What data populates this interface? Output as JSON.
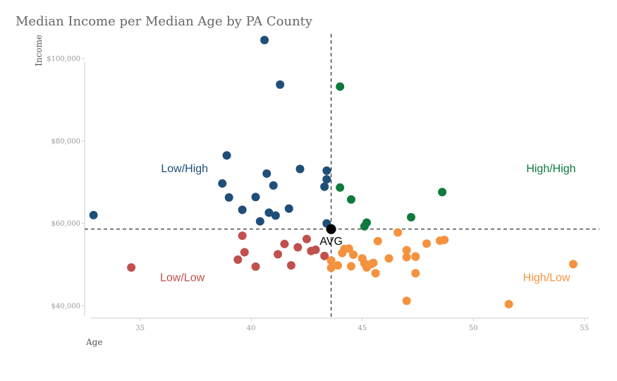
{
  "chart_data": {
    "type": "scatter",
    "title": "Median Income per Median Age by PA County",
    "xlabel": "Age",
    "ylabel": "Income",
    "xlim": [
      32.5,
      55.2
    ],
    "ylim": [
      37500,
      106000
    ],
    "x_ticks": [
      35,
      40,
      45,
      50,
      55
    ],
    "x_tick_labels": [
      "35",
      "40",
      "45",
      "50",
      "55"
    ],
    "y_ticks": [
      40000,
      60000,
      80000,
      100000
    ],
    "y_tick_labels": [
      "$40,000",
      "$60,000",
      "$80,000",
      "$100,000"
    ],
    "grid": false,
    "reference_lines": {
      "x": 43.6,
      "y": 58600,
      "style": "dashed"
    },
    "avg_point": {
      "x": 43.6,
      "y": 58600,
      "label": "AVG",
      "color": "#000000"
    },
    "quadrant_labels": [
      {
        "text": "Low/High",
        "x": 37.0,
        "y": 73500,
        "color": "#1f4e79"
      },
      {
        "text": "High/High",
        "x": 53.5,
        "y": 73500,
        "color": "#0e7a3e"
      },
      {
        "text": "Low/Low",
        "x": 36.9,
        "y": 47000,
        "color": "#c0504d"
      },
      {
        "text": "High/Low",
        "x": 53.3,
        "y": 47000,
        "color": "#f5923e"
      }
    ],
    "series": [
      {
        "name": "Low/High",
        "color": "#1f4e79",
        "points": [
          [
            32.9,
            62000
          ],
          [
            38.9,
            76500
          ],
          [
            38.7,
            69700
          ],
          [
            39.0,
            66300
          ],
          [
            39.6,
            63300
          ],
          [
            40.2,
            66400
          ],
          [
            40.4,
            60500
          ],
          [
            40.6,
            104500
          ],
          [
            40.7,
            72100
          ],
          [
            40.8,
            62600
          ],
          [
            41.0,
            69200
          ],
          [
            41.1,
            61900
          ],
          [
            41.3,
            93700
          ],
          [
            41.7,
            63600
          ],
          [
            42.2,
            73200
          ],
          [
            43.4,
            72800
          ],
          [
            43.4,
            70700
          ],
          [
            43.3,
            68900
          ],
          [
            43.4,
            60000
          ]
        ]
      },
      {
        "name": "High/High",
        "color": "#0e7a3e",
        "points": [
          [
            44.0,
            93200
          ],
          [
            44.0,
            68700
          ],
          [
            44.5,
            65800
          ],
          [
            45.1,
            59300
          ],
          [
            45.2,
            60200
          ],
          [
            47.2,
            61500
          ],
          [
            48.6,
            67600
          ]
        ]
      },
      {
        "name": "Low/Low",
        "color": "#c0504d",
        "points": [
          [
            34.6,
            49300
          ],
          [
            39.4,
            51200
          ],
          [
            39.6,
            57000
          ],
          [
            39.7,
            53000
          ],
          [
            40.2,
            49500
          ],
          [
            41.2,
            52500
          ],
          [
            41.5,
            55000
          ],
          [
            41.8,
            49800
          ],
          [
            42.1,
            54200
          ],
          [
            42.5,
            56200
          ],
          [
            42.7,
            53300
          ],
          [
            42.9,
            53600
          ],
          [
            43.3,
            52100
          ]
        ]
      },
      {
        "name": "High/Low",
        "color": "#f5923e",
        "points": [
          [
            43.6,
            49200
          ],
          [
            43.6,
            51000
          ],
          [
            43.9,
            49800
          ],
          [
            44.1,
            52800
          ],
          [
            44.2,
            53800
          ],
          [
            44.4,
            53900
          ],
          [
            44.5,
            49600
          ],
          [
            44.6,
            52400
          ],
          [
            45.0,
            51500
          ],
          [
            45.1,
            50300
          ],
          [
            45.2,
            49300
          ],
          [
            45.4,
            50100
          ],
          [
            45.5,
            50400
          ],
          [
            45.6,
            47900
          ],
          [
            45.7,
            55700
          ],
          [
            46.2,
            51500
          ],
          [
            46.6,
            57800
          ],
          [
            47.0,
            53500
          ],
          [
            47.0,
            51800
          ],
          [
            47.0,
            41200
          ],
          [
            47.4,
            51900
          ],
          [
            47.4,
            52000
          ],
          [
            47.4,
            47900
          ],
          [
            47.9,
            55100
          ],
          [
            48.5,
            55800
          ],
          [
            48.7,
            56000
          ],
          [
            51.6,
            40400
          ],
          [
            54.5,
            50100
          ]
        ]
      }
    ]
  }
}
